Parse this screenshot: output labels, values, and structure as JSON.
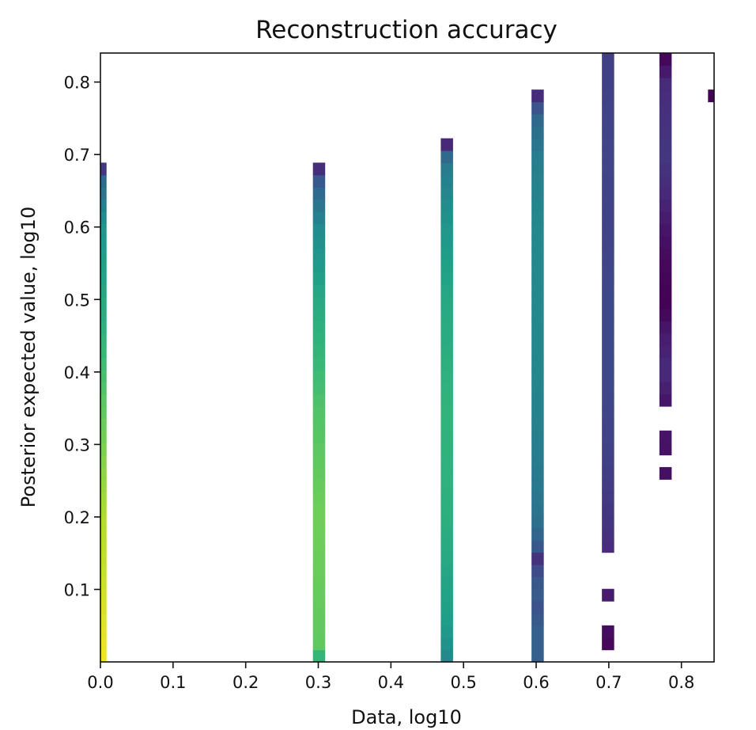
{
  "chart_data": {
    "type": "heatmap",
    "title": "Reconstruction accuracy",
    "xlabel": "Data, log10",
    "ylabel": "Posterior expected value, log10",
    "xlim": [
      0.0,
      0.845
    ],
    "ylim": [
      0.0,
      0.84
    ],
    "xticks": [
      {
        "value": 0.0,
        "label": "0.0"
      },
      {
        "value": 0.1,
        "label": "0.1"
      },
      {
        "value": 0.2,
        "label": "0.2"
      },
      {
        "value": 0.3,
        "label": "0.3"
      },
      {
        "value": 0.4,
        "label": "0.4"
      },
      {
        "value": 0.5,
        "label": "0.5"
      },
      {
        "value": 0.6,
        "label": "0.6"
      },
      {
        "value": 0.7,
        "label": "0.7"
      },
      {
        "value": 0.8,
        "label": "0.8"
      }
    ],
    "yticks": [
      {
        "value": 0.1,
        "label": "0.1"
      },
      {
        "value": 0.2,
        "label": "0.2"
      },
      {
        "value": 0.3,
        "label": "0.3"
      },
      {
        "value": 0.4,
        "label": "0.4"
      },
      {
        "value": 0.5,
        "label": "0.5"
      },
      {
        "value": 0.6,
        "label": "0.6"
      },
      {
        "value": 0.7,
        "label": "0.7"
      },
      {
        "value": 0.8,
        "label": "0.8"
      }
    ],
    "colormap": "viridis",
    "grid": false,
    "legend": "none",
    "bin_width": 0.0169,
    "bin_height": 0.0168,
    "columns": [
      {
        "x": 0.0,
        "y_max": 0.688,
        "profile": [
          [
            0,
            0.98
          ],
          [
            0.06,
            0.95
          ],
          [
            0.2,
            0.88
          ],
          [
            0.35,
            0.75
          ],
          [
            0.5,
            0.6
          ],
          [
            0.6,
            0.52
          ],
          [
            0.66,
            0.36
          ],
          [
            0.675,
            0.28
          ],
          [
            0.688,
            0.0
          ]
        ],
        "gaps": []
      },
      {
        "x": 0.30103,
        "y_max": 0.688,
        "profile": [
          [
            0,
            0.62
          ],
          [
            0.025,
            0.75
          ],
          [
            0.2,
            0.78
          ],
          [
            0.35,
            0.72
          ],
          [
            0.5,
            0.6
          ],
          [
            0.6,
            0.48
          ],
          [
            0.66,
            0.3
          ],
          [
            0.675,
            0.22
          ],
          [
            0.688,
            0.0
          ]
        ],
        "gaps": []
      },
      {
        "x": 0.47712,
        "y_max": 0.722,
        "profile": [
          [
            0,
            0.45
          ],
          [
            0.05,
            0.55
          ],
          [
            0.2,
            0.63
          ],
          [
            0.35,
            0.65
          ],
          [
            0.5,
            0.6
          ],
          [
            0.6,
            0.52
          ],
          [
            0.68,
            0.42
          ],
          [
            0.7,
            0.32
          ],
          [
            0.708,
            0.2
          ],
          [
            0.722,
            0.0
          ]
        ],
        "gaps": []
      },
      {
        "x": 0.60206,
        "y_max": 0.79,
        "profile": [
          [
            0,
            0.3
          ],
          [
            0.05,
            0.3
          ],
          [
            0.07,
            0.25
          ],
          [
            0.1,
            0.3
          ],
          [
            0.13,
            0.22
          ],
          [
            0.15,
            0.1
          ],
          [
            0.16,
            0.28
          ],
          [
            0.2,
            0.38
          ],
          [
            0.3,
            0.43
          ],
          [
            0.4,
            0.46
          ],
          [
            0.5,
            0.47
          ],
          [
            0.6,
            0.47
          ],
          [
            0.7,
            0.42
          ],
          [
            0.75,
            0.33
          ],
          [
            0.775,
            0.22
          ],
          [
            0.79,
            0.0
          ]
        ],
        "gaps": []
      },
      {
        "x": 0.69897,
        "y_max": 0.84,
        "profile": [
          [
            0,
            0.0
          ],
          [
            0.15,
            0.12
          ],
          [
            0.2,
            0.16
          ],
          [
            0.3,
            0.2
          ],
          [
            0.4,
            0.22
          ],
          [
            0.5,
            0.22
          ],
          [
            0.6,
            0.2
          ],
          [
            0.7,
            0.21
          ],
          [
            0.84,
            0.19
          ]
        ],
        "gaps": [
          [
            0.0,
            0.02
          ],
          [
            0.05,
            0.088
          ],
          [
            0.105,
            0.155
          ]
        ]
      },
      {
        "x": 0.77815,
        "y_max": 0.84,
        "profile": [
          [
            0,
            0.0
          ],
          [
            0.36,
            0.06
          ],
          [
            0.4,
            0.12
          ],
          [
            0.45,
            0.08
          ],
          [
            0.49,
            0.0
          ],
          [
            0.55,
            0.02
          ],
          [
            0.6,
            0.06
          ],
          [
            0.65,
            0.12
          ],
          [
            0.7,
            0.16
          ],
          [
            0.8,
            0.12
          ],
          [
            0.82,
            0.05
          ],
          [
            0.84,
            0.0
          ]
        ],
        "gaps": [
          [
            0.0,
            0.254
          ],
          [
            0.272,
            0.288
          ],
          [
            0.306,
            0.306
          ],
          [
            0.322,
            0.356
          ],
          [
            0.474,
            0.474
          ]
        ]
      },
      {
        "x": 0.8451,
        "y_max": 0.79,
        "profile": [
          [
            0,
            0.0
          ],
          [
            0.79,
            0.0
          ]
        ],
        "gaps": [
          [
            0.0,
            0.77
          ]
        ]
      }
    ]
  }
}
